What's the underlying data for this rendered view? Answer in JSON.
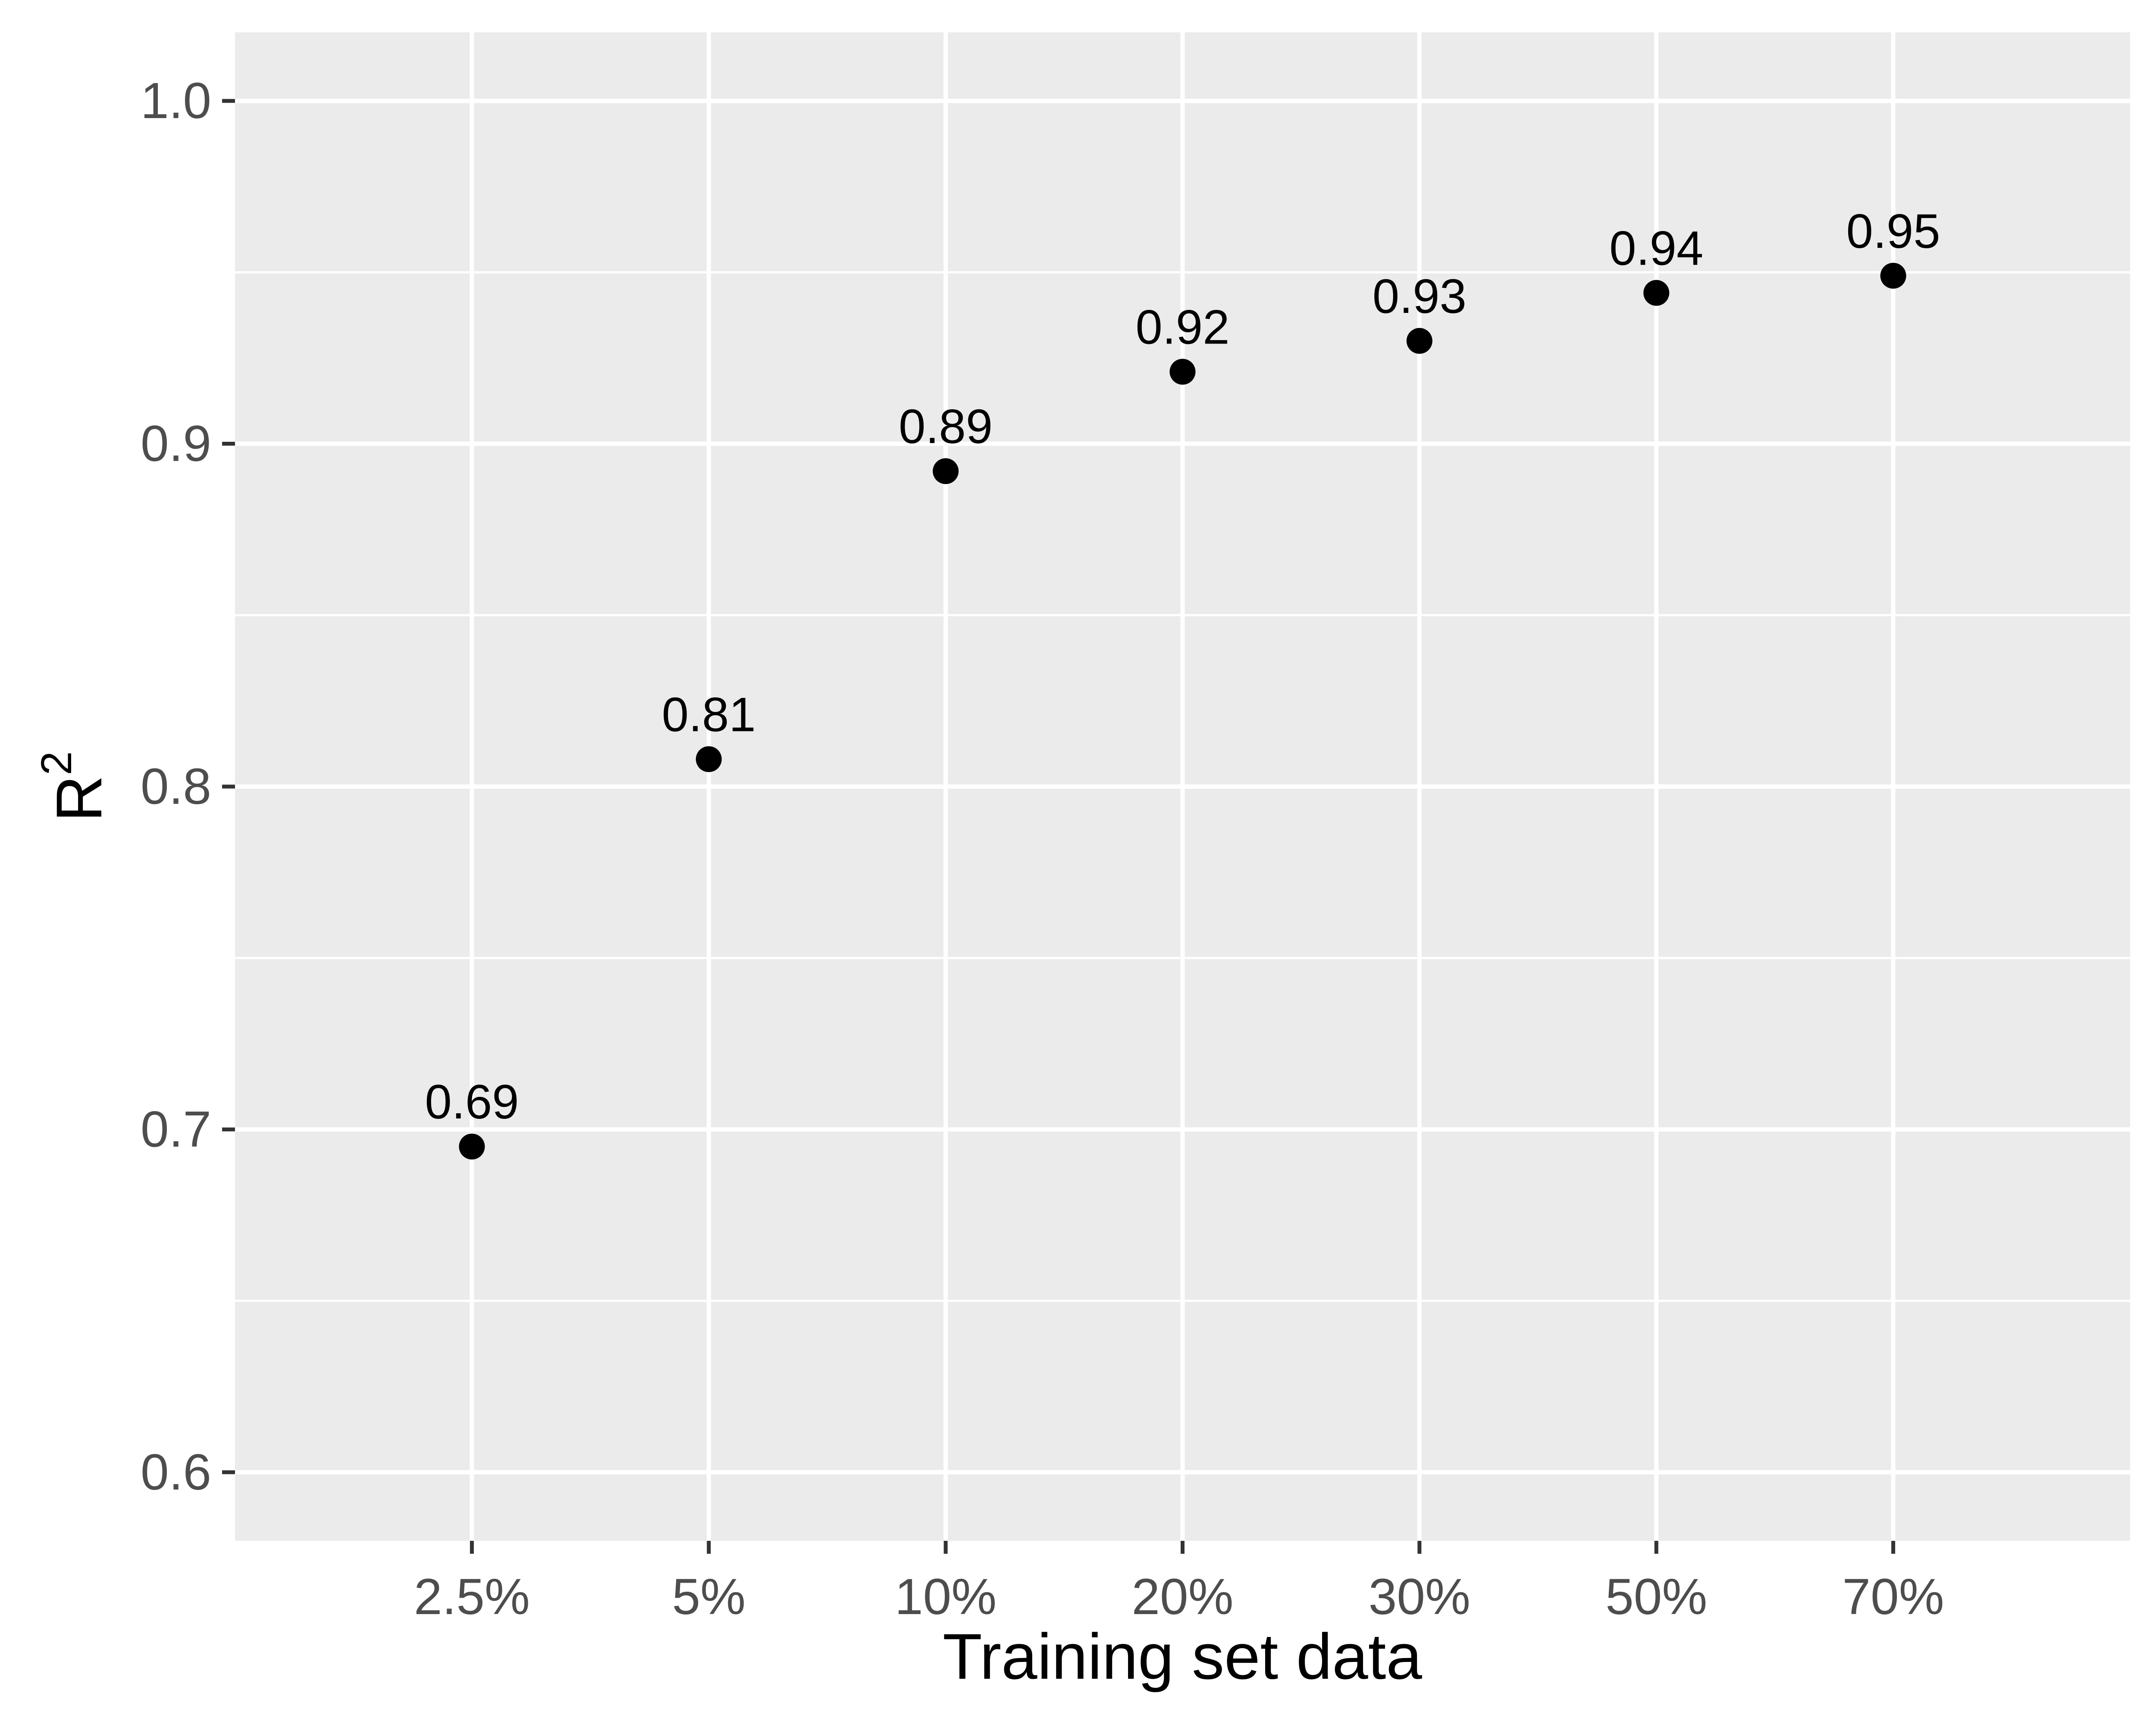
{
  "chart_data": {
    "type": "scatter",
    "title": "",
    "xlabel": "Training set data",
    "ylabel": "R",
    "ylabel_superscript": "2",
    "categories": [
      "2.5%",
      "5%",
      "10%",
      "20%",
      "30%",
      "50%",
      "70%"
    ],
    "values": [
      0.695,
      0.808,
      0.892,
      0.921,
      0.93,
      0.944,
      0.949
    ],
    "point_labels": [
      "0.69",
      "0.81",
      "0.89",
      "0.92",
      "0.93",
      "0.94",
      "0.95"
    ],
    "y_ticks": [
      "0.6",
      "0.7",
      "0.8",
      "0.9",
      "1.0"
    ],
    "y_tick_values": [
      0.6,
      0.7,
      0.8,
      0.9,
      1.0
    ],
    "ylim": [
      0.58,
      1.02
    ],
    "grid": true,
    "legend": "none",
    "colors": {
      "panel_background": "#ebebeb",
      "grid": "#ffffff",
      "point": "#000000",
      "tick_label": "#4d4d4d",
      "axis_title": "#000000"
    }
  }
}
